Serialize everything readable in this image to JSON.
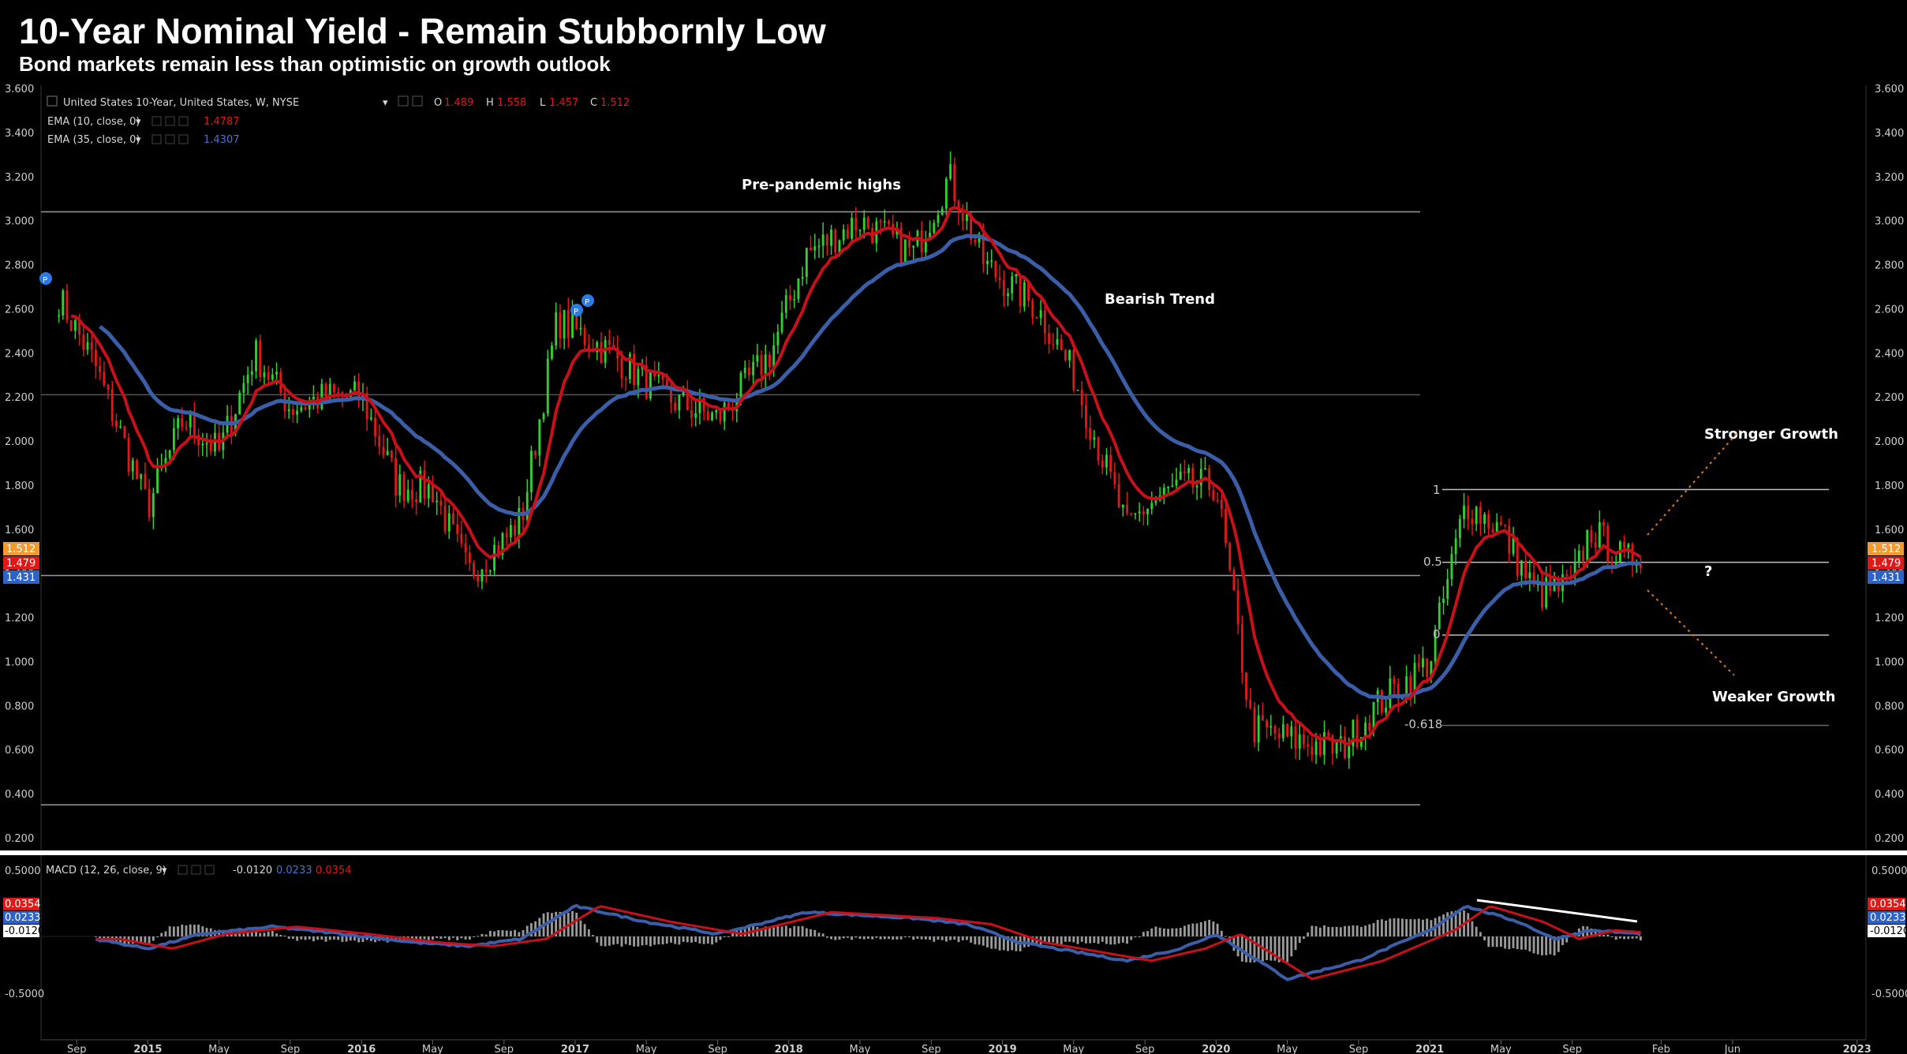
{
  "title": "10-Year Nominal Yield - Remain Stubbornly Low",
  "subtitle": "Bond markets remain less than optimistic on growth outlook",
  "colors": {
    "up": "#2fd12f",
    "down": "#e01818",
    "ema_fast": "#c8101a",
    "ema_slow": "#3a5fa8",
    "macd_signal": "#c8101a",
    "macd_line": "#3a5fa8",
    "hist": "#9a9a9a"
  },
  "legend": {
    "symbol": "United States 10-Year, United States, W, NYSE",
    "o_label": "O",
    "o": "1.489",
    "h_label": "H",
    "h": "1.558",
    "l_label": "L",
    "l": "1.457",
    "c_label": "C",
    "c": "1.512",
    "ema10_label": "EMA (10, close, 0)",
    "ema10_value": "1.4787",
    "ema35_label": "EMA (35, close, 0)",
    "ema35_value": "1.4307",
    "macd_label": "MACD (12, 26, close, 9)",
    "macd_hist": "-0.0120",
    "macd_value": "0.0233",
    "macd_signal": "0.0354"
  },
  "badges": {
    "price_close": "1.512",
    "price_ema10": "1.479",
    "price_ema35": "1.431",
    "macd_signal": "0.0354",
    "macd_value": "0.0233",
    "macd_hist": "-0.0120"
  },
  "annotations": {
    "pre_pandemic": "Pre-pandemic highs",
    "bearish": "Bearish Trend",
    "stronger": "Stronger Growth",
    "weaker": "Weaker Growth",
    "question": "?",
    "fib_1": "1",
    "fib_05": "0.5",
    "fib_0": "0",
    "fib_618": "-0.618",
    "marker_p": "P"
  },
  "chart_data": {
    "type": "candlestick",
    "y_ticks": [
      "3.600",
      "3.400",
      "3.200",
      "3.000",
      "2.800",
      "2.600",
      "2.400",
      "2.200",
      "2.000",
      "1.800",
      "1.600",
      "1.400",
      "1.200",
      "1.000",
      "0.800",
      "0.600",
      "0.400",
      "0.200"
    ],
    "macd_ticks": [
      "0.5000",
      "-0.5000"
    ],
    "x_ticks": [
      "Sep",
      "2015",
      "May",
      "Sep",
      "2016",
      "May",
      "Sep",
      "2017",
      "May",
      "Sep",
      "2018",
      "May",
      "Sep",
      "2019",
      "May",
      "Sep",
      "2020",
      "May",
      "Sep",
      "2021",
      "May",
      "Sep",
      "Feb",
      "Jun",
      "2023"
    ],
    "ylim": [
      0.2,
      3.6
    ],
    "horizontal_levels": [
      3.04,
      2.21,
      1.39,
      0.35
    ],
    "fib_levels": {
      "1": 1.78,
      "0.5": 1.45,
      "0": 1.12,
      "-0.618": 0.71
    },
    "waypoints": [
      [
        "2014-08",
        2.65
      ],
      [
        "2014-10",
        2.35
      ],
      [
        "2015-01",
        1.7
      ],
      [
        "2015-03",
        2.1
      ],
      [
        "2015-05",
        1.95
      ],
      [
        "2015-07",
        2.4
      ],
      [
        "2015-09",
        2.15
      ],
      [
        "2015-11",
        2.2
      ],
      [
        "2016-01",
        2.2
      ],
      [
        "2016-03",
        1.8
      ],
      [
        "2016-05",
        1.78
      ],
      [
        "2016-07",
        1.4
      ],
      [
        "2016-09",
        1.55
      ],
      [
        "2016-10",
        1.65
      ],
      [
        "2016-12",
        2.55
      ],
      [
        "2017-03",
        2.4
      ],
      [
        "2017-06",
        2.2
      ],
      [
        "2017-09",
        2.1
      ],
      [
        "2017-12",
        2.4
      ],
      [
        "2018-02",
        2.85
      ],
      [
        "2018-05",
        3.0
      ],
      [
        "2018-08",
        2.85
      ],
      [
        "2018-10",
        3.2
      ],
      [
        "2018-12",
        2.8
      ],
      [
        "2019-03",
        2.6
      ],
      [
        "2019-05",
        2.3
      ],
      [
        "2019-08",
        1.6
      ],
      [
        "2019-09",
        1.7
      ],
      [
        "2019-11",
        1.8
      ],
      [
        "2020-01",
        1.8
      ],
      [
        "2020-03",
        0.7
      ],
      [
        "2020-05",
        0.65
      ],
      [
        "2020-08",
        0.6
      ],
      [
        "2020-10",
        0.8
      ],
      [
        "2021-01",
        1.0
      ],
      [
        "2021-03",
        1.72
      ],
      [
        "2021-05",
        1.6
      ],
      [
        "2021-07",
        1.3
      ],
      [
        "2021-09",
        1.35
      ],
      [
        "2021-10",
        1.6
      ],
      [
        "2021-12",
        1.45
      ],
      [
        "2022-01",
        1.51
      ]
    ],
    "macd_waypoints": [
      [
        "2014-10",
        -0.02
      ],
      [
        "2015-01",
        -0.1
      ],
      [
        "2015-04",
        0.02
      ],
      [
        "2015-08",
        0.08
      ],
      [
        "2015-12",
        0.02
      ],
      [
        "2016-04",
        -0.05
      ],
      [
        "2016-07",
        -0.08
      ],
      [
        "2016-10",
        -0.02
      ],
      [
        "2017-01",
        0.25
      ],
      [
        "2017-05",
        0.12
      ],
      [
        "2017-09",
        0.02
      ],
      [
        "2018-02",
        0.2
      ],
      [
        "2018-08",
        0.15
      ],
      [
        "2018-11",
        0.1
      ],
      [
        "2019-02",
        -0.05
      ],
      [
        "2019-08",
        -0.2
      ],
      [
        "2019-11",
        -0.1
      ],
      [
        "2020-01",
        0.02
      ],
      [
        "2020-05",
        -0.35
      ],
      [
        "2020-09",
        -0.2
      ],
      [
        "2021-01",
        0.05
      ],
      [
        "2021-03",
        0.25
      ],
      [
        "2021-06",
        0.12
      ],
      [
        "2021-08",
        -0.02
      ],
      [
        "2021-10",
        0.05
      ],
      [
        "2022-01",
        0.02
      ]
    ]
  }
}
